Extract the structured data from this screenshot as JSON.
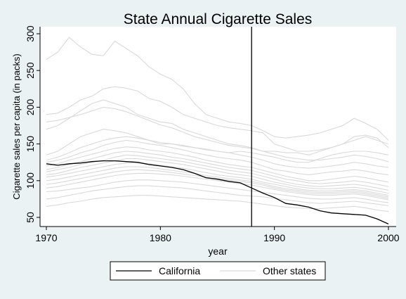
{
  "chart_data": {
    "type": "line",
    "title": "State Annual Cigarette Sales",
    "xlabel": "year",
    "ylabel": "Cigarette sales per capita (in packs)",
    "xlim": [
      1970,
      2000
    ],
    "ylim": [
      50,
      300
    ],
    "x_ticks": [
      "1970",
      "1980",
      "1990",
      "2000"
    ],
    "y_ticks": [
      "50",
      "100",
      "150",
      "200",
      "250",
      "300"
    ],
    "reference_line_x": 1988,
    "grid": false,
    "legend_placement": "bottom",
    "x": [
      1970,
      1971,
      1972,
      1973,
      1974,
      1975,
      1976,
      1977,
      1978,
      1979,
      1980,
      1981,
      1982,
      1983,
      1984,
      1985,
      1986,
      1987,
      1988,
      1989,
      1990,
      1991,
      1992,
      1993,
      1994,
      1995,
      1996,
      1997,
      1998,
      1999,
      2000
    ],
    "series": [
      {
        "name": "California",
        "color": "#000000",
        "values": [
          123,
          121,
          123,
          124,
          126,
          127,
          127,
          126,
          125,
          122,
          120,
          118,
          115,
          110,
          104,
          102,
          99,
          97,
          90,
          83,
          77,
          69,
          67,
          64,
          59,
          56,
          55,
          54,
          53,
          48,
          41
        ]
      },
      {
        "name": "Other states",
        "color": "#d9d9d9",
        "lines": [
          [
            265,
            275,
            295,
            282,
            272,
            270,
            290,
            280,
            270,
            255,
            245,
            238,
            225,
            205,
            190,
            185,
            180,
            178,
            175,
            168,
            160,
            158,
            160,
            162,
            165,
            170,
            175,
            185,
            178,
            170,
            155
          ],
          [
            190,
            192,
            200,
            210,
            215,
            225,
            228,
            226,
            222,
            212,
            208,
            200,
            190,
            185,
            180,
            175,
            172,
            170,
            168,
            165,
            150,
            145,
            140,
            140,
            142,
            145,
            150,
            160,
            162,
            158,
            145
          ],
          [
            170,
            175,
            185,
            195,
            205,
            210,
            205,
            200,
            190,
            185,
            180,
            178,
            170,
            165,
            160,
            155,
            150,
            148,
            145,
            140,
            140,
            138,
            138,
            135,
            140,
            145,
            150,
            155,
            160,
            155,
            150
          ],
          [
            135,
            140,
            150,
            160,
            165,
            170,
            168,
            165,
            160,
            155,
            150,
            150,
            148,
            145,
            143,
            140,
            138,
            140,
            138,
            135,
            132,
            128,
            125,
            125,
            130,
            135,
            138,
            140,
            140,
            138,
            135
          ],
          [
            128,
            132,
            138,
            145,
            150,
            155,
            158,
            160,
            158,
            155,
            152,
            150,
            147,
            145,
            142,
            140,
            138,
            135,
            132,
            128,
            123,
            120,
            118,
            117,
            118,
            120,
            122,
            125,
            123,
            120,
            118
          ],
          [
            125,
            128,
            132,
            138,
            142,
            148,
            152,
            155,
            153,
            150,
            148,
            145,
            142,
            138,
            135,
            132,
            130,
            128,
            125,
            120,
            115,
            113,
            110,
            108,
            110,
            112,
            113,
            115,
            113,
            110,
            108
          ],
          [
            120,
            123,
            128,
            132,
            136,
            140,
            144,
            146,
            145,
            142,
            140,
            138,
            135,
            132,
            128,
            125,
            122,
            120,
            118,
            114,
            110,
            106,
            103,
            100,
            100,
            102,
            104,
            106,
            104,
            101,
            98
          ],
          [
            115,
            118,
            122,
            126,
            130,
            134,
            138,
            140,
            139,
            137,
            135,
            132,
            130,
            127,
            124,
            121,
            118,
            116,
            114,
            110,
            106,
            102,
            100,
            97,
            96,
            97,
            98,
            100,
            98,
            95,
            92
          ],
          [
            112,
            115,
            118,
            122,
            125,
            128,
            132,
            135,
            134,
            132,
            130,
            128,
            126,
            123,
            120,
            117,
            114,
            112,
            110,
            106,
            102,
            98,
            95,
            93,
            92,
            93,
            94,
            95,
            93,
            90,
            87
          ],
          [
            108,
            110,
            114,
            118,
            121,
            124,
            127,
            130,
            130,
            128,
            126,
            124,
            122,
            119,
            116,
            113,
            110,
            108,
            106,
            102,
            98,
            95,
            92,
            90,
            89,
            89,
            90,
            91,
            89,
            86,
            83
          ],
          [
            105,
            107,
            110,
            113,
            116,
            119,
            122,
            124,
            124,
            123,
            121,
            119,
            117,
            114,
            111,
            108,
            106,
            104,
            102,
            98,
            95,
            92,
            89,
            87,
            86,
            86,
            87,
            88,
            86,
            83,
            80
          ],
          [
            100,
            102,
            105,
            108,
            111,
            114,
            117,
            119,
            119,
            118,
            116,
            114,
            112,
            110,
            107,
            105,
            103,
            101,
            99,
            96,
            92,
            89,
            87,
            85,
            84,
            84,
            85,
            86,
            84,
            81,
            78
          ],
          [
            95,
            97,
            100,
            103,
            106,
            109,
            112,
            114,
            115,
            114,
            113,
            111,
            109,
            107,
            105,
            103,
            101,
            99,
            97,
            94,
            90,
            87,
            85,
            83,
            82,
            82,
            83,
            84,
            82,
            79,
            76
          ],
          [
            90,
            92,
            95,
            98,
            101,
            104,
            107,
            109,
            110,
            110,
            109,
            108,
            106,
            104,
            102,
            100,
            98,
            96,
            94,
            91,
            88,
            85,
            83,
            81,
            80,
            80,
            81,
            82,
            80,
            77,
            74
          ],
          [
            85,
            86,
            88,
            90,
            92,
            95,
            98,
            100,
            101,
            101,
            100,
            99,
            98,
            96,
            94,
            92,
            90,
            88,
            86,
            84,
            82,
            80,
            78,
            76,
            75,
            75,
            76,
            77,
            75,
            72,
            70
          ],
          [
            75,
            77,
            80,
            83,
            86,
            88,
            90,
            92,
            93,
            93,
            92,
            91,
            90,
            88,
            86,
            84,
            82,
            80,
            79,
            78,
            76,
            74,
            72,
            70,
            69,
            70,
            71,
            72,
            70,
            68,
            66
          ],
          [
            65,
            67,
            70,
            72,
            75,
            77,
            78,
            79,
            80,
            80,
            79,
            78,
            77,
            76,
            75,
            74,
            73,
            72,
            70,
            68,
            66,
            64,
            63,
            62,
            62,
            63,
            64,
            65,
            63,
            60,
            58
          ],
          [
            180,
            182,
            186,
            190,
            195,
            200,
            198,
            194,
            188,
            182,
            176,
            172,
            166,
            160,
            156,
            152,
            148,
            146,
            144,
            140,
            136,
            132,
            130,
            128,
            128,
            130,
            132,
            135,
            133,
            130,
            126
          ]
        ]
      }
    ]
  }
}
